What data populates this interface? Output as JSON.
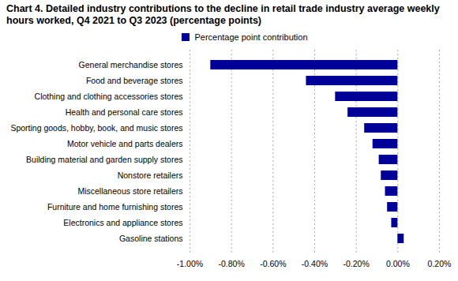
{
  "chart_data": {
    "type": "bar",
    "title": "Chart 4. Detailed industry contributions to the decline in retail trade industry average weekly hours worked, Q4 2021 to Q3 2023 (percentage points)",
    "orientation": "horizontal",
    "categories": [
      "General merchandise stores",
      "Food and beverage stores",
      "Clothing and clothing accessories stores",
      "Health and personal care stores",
      "Sporting goods, hobby, book, and music stores",
      "Motor vehicle and parts dealers",
      "Building material and garden supply stores",
      "Nonstore retailers",
      "Miscellaneous store retailers",
      "Furniture and home furnishing stores",
      "Electronics and appliance stores",
      "Gasoline stations"
    ],
    "series": [
      {
        "name": "Percentage point contribution",
        "color": "#000099",
        "values": [
          -0.9,
          -0.44,
          -0.3,
          -0.24,
          -0.16,
          -0.12,
          -0.09,
          -0.08,
          -0.06,
          -0.05,
          -0.03,
          0.03
        ]
      }
    ],
    "xlim": [
      -1,
      0.2
    ],
    "xticks": [
      {
        "value": -1,
        "label": "-1.00%"
      },
      {
        "value": -0.8,
        "label": "-0.80%"
      },
      {
        "value": -0.6,
        "label": "-0.60%"
      },
      {
        "value": -0.4,
        "label": "-0.40%"
      },
      {
        "value": -0.2,
        "label": "-0.20%"
      },
      {
        "value": 0,
        "label": "0.00%"
      },
      {
        "value": 0.2,
        "label": "0.20%"
      }
    ],
    "grid": true,
    "legend": "top"
  }
}
